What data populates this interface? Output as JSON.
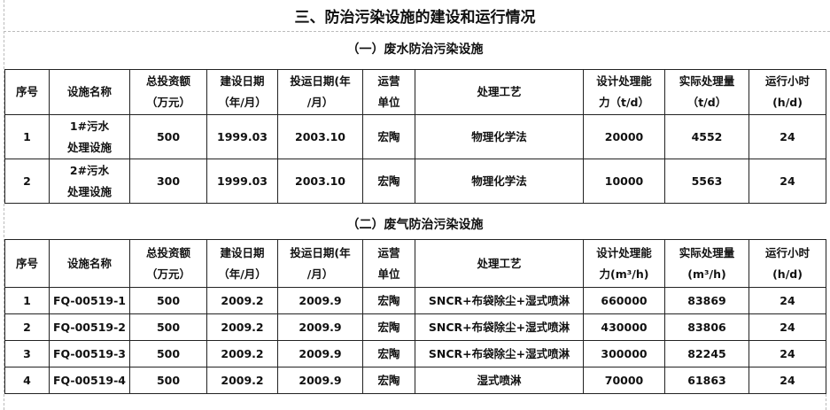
{
  "title": "三、防治污染设施的建设和运行情况",
  "water": {
    "subtitle": "（一）废水防治污染设施",
    "headers": [
      [
        "序号"
      ],
      [
        "设施名称"
      ],
      [
        "总投资额",
        "（万元）"
      ],
      [
        "建设日期",
        "（年/月）"
      ],
      [
        "投运日期(年",
        "/月）"
      ],
      [
        "运营",
        "单位"
      ],
      [
        "处理工艺"
      ],
      [
        "设计处理能",
        "力（t/d）"
      ],
      [
        "实际处理量",
        "（t/d）"
      ],
      [
        "运行小时",
        "(h/d)"
      ]
    ],
    "rows": [
      {
        "no": "1",
        "name1": "1#污水",
        "name2": "处理设施",
        "invest": "500",
        "build": "1999.03",
        "run": "2003.10",
        "unit": "宏陶",
        "process": "物理化学法",
        "design": "20000",
        "actual": "4552",
        "hours": "24"
      },
      {
        "no": "2",
        "name1": "2#污水",
        "name2": "处理设施",
        "invest": "300",
        "build": "1999.03",
        "run": "2003.10",
        "unit": "宏陶",
        "process": "物理化学法",
        "design": "10000",
        "actual": "5563",
        "hours": "24"
      }
    ]
  },
  "gas": {
    "subtitle": "（二）废气防治污染设施",
    "headers": [
      [
        "序号"
      ],
      [
        "设施名称"
      ],
      [
        "总投资额",
        "（万元）"
      ],
      [
        "建设日期",
        "（年/月）"
      ],
      [
        "投运日期(年",
        "/月）"
      ],
      [
        "运营",
        "单位"
      ],
      [
        "处理工艺"
      ],
      [
        "设计处理能",
        "力(m³/h)"
      ],
      [
        "实际处理量",
        "(m³/h)"
      ],
      [
        "运行小时",
        "(h/d)"
      ]
    ],
    "rows": [
      {
        "no": "1",
        "name": "FQ-00519-1",
        "invest": "500",
        "build": "2009.2",
        "run": "2009.9",
        "unit": "宏陶",
        "process": "SNCR+布袋除尘+湿式喷淋",
        "design": "660000",
        "actual": "83869",
        "hours": "24"
      },
      {
        "no": "2",
        "name": "FQ-00519-2",
        "invest": "500",
        "build": "2009.2",
        "run": "2009.9",
        "unit": "宏陶",
        "process": "SNCR+布袋除尘+湿式喷淋",
        "design": "430000",
        "actual": "83806",
        "hours": "24"
      },
      {
        "no": "3",
        "name": "FQ-00519-3",
        "invest": "500",
        "build": "2009.2",
        "run": "2009.9",
        "unit": "宏陶",
        "process": "SNCR+布袋除尘+湿式喷淋",
        "design": "300000",
        "actual": "82245",
        "hours": "24"
      },
      {
        "no": "4",
        "name": "FQ-00519-4",
        "invest": "500",
        "build": "2009.2",
        "run": "2009.9",
        "unit": "宏陶",
        "process": "湿式喷淋",
        "design": "70000",
        "actual": "61863",
        "hours": "24"
      }
    ]
  }
}
